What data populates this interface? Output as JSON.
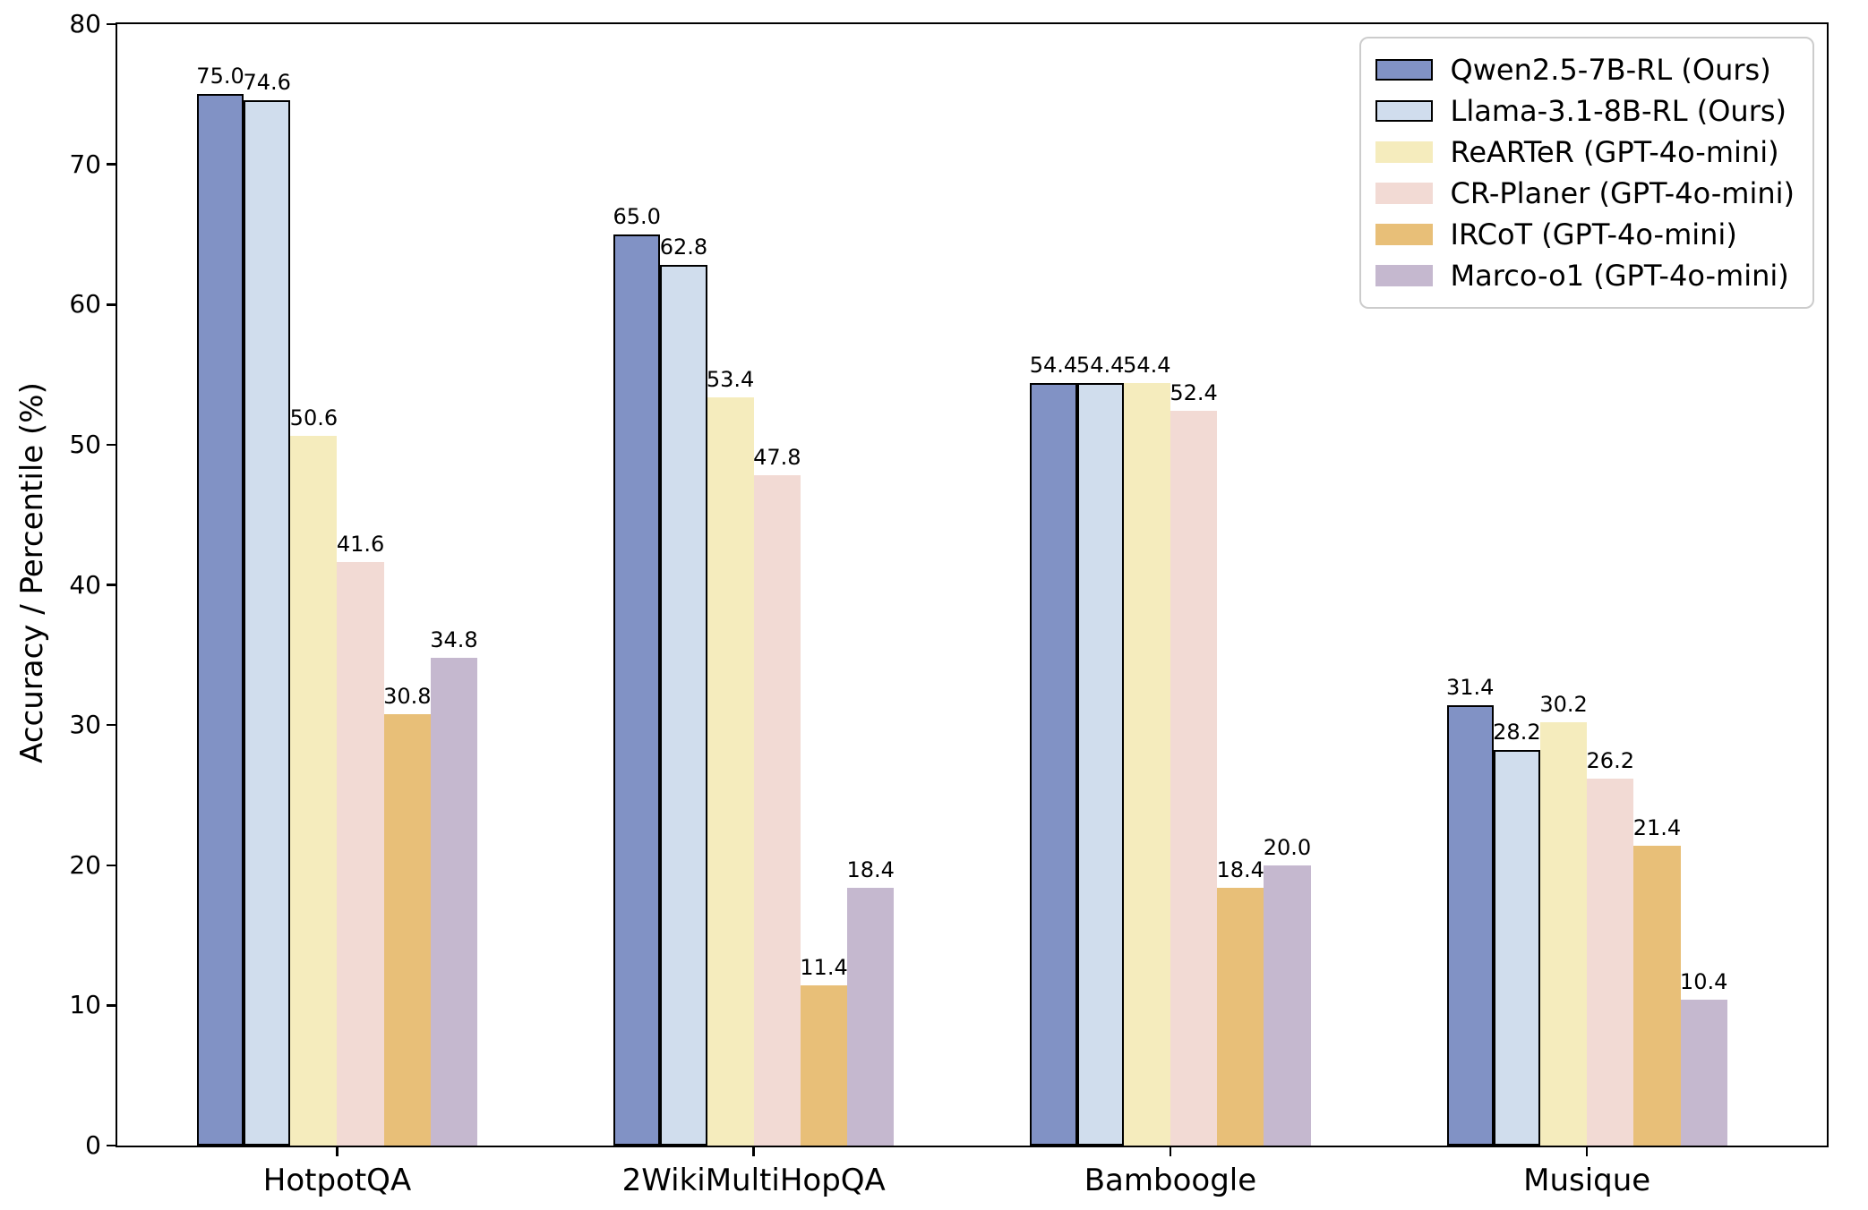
{
  "chart_data": {
    "type": "bar",
    "title": "",
    "ylabel": "Accuracy / Percentile (%)",
    "xlabel": "",
    "ylim": [
      0,
      80
    ],
    "yticks": [
      0,
      10,
      20,
      30,
      40,
      50,
      60,
      70,
      80
    ],
    "grid": false,
    "legend_position": "upper right",
    "value_labels": "one decimal place above each bar",
    "categories": [
      "HotpotQA",
      "2WikiMultiHopQA",
      "Bamboogle",
      "Musique"
    ],
    "series": [
      {
        "name": "Qwen2.5-7B-RL (Ours)",
        "color": "#8192c5",
        "edgecolor": "#000000",
        "values": [
          75.0,
          65.0,
          54.4,
          31.4
        ]
      },
      {
        "name": "Llama-3.1-8B-RL (Ours)",
        "color": "#d0dded",
        "edgecolor": "#000000",
        "values": [
          74.6,
          62.8,
          54.4,
          28.2
        ]
      },
      {
        "name": "ReARTeR (GPT-4o-mini)",
        "color": "#f5ecbd",
        "edgecolor": null,
        "values": [
          50.6,
          53.4,
          54.4,
          30.2
        ]
      },
      {
        "name": "CR-Planer (GPT-4o-mini)",
        "color": "#f2dad4",
        "edgecolor": null,
        "values": [
          41.6,
          47.8,
          52.4,
          26.2
        ]
      },
      {
        "name": "IRCoT (GPT-4o-mini)",
        "color": "#e8bf78",
        "edgecolor": null,
        "values": [
          30.8,
          11.4,
          18.4,
          21.4
        ]
      },
      {
        "name": "Marco-o1 (GPT-4o-mini)",
        "color": "#c5b8cf",
        "edgecolor": null,
        "values": [
          34.8,
          18.4,
          20.0,
          10.4
        ]
      }
    ]
  }
}
